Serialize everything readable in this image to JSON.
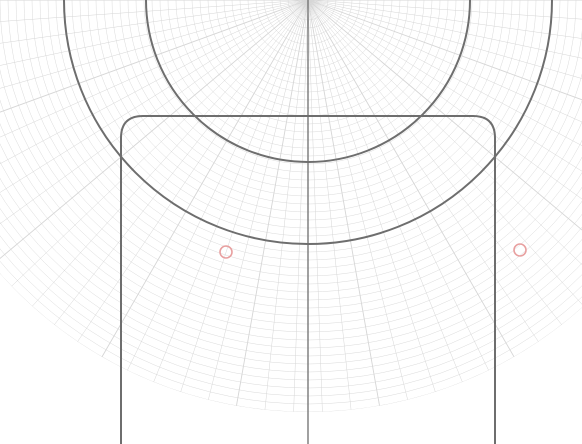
{
  "viewport": {
    "background": "#ffffff"
  },
  "colors": {
    "polar_grid": "#d6d6d6",
    "outline": "#6e6e6e",
    "curve_green": "#2f8a2f",
    "curve_brown": "#8a5a4a",
    "node_marker": "#e8a0a0"
  },
  "layers": {
    "polar_grid": "polar-coordinate-grid",
    "outer_arc": "outer-ring-arc",
    "inner_arc": "inner-ring-arc",
    "frame": "rounded-rectangle-frame",
    "centerline": "vertical-centerline",
    "curves": "dotted-deflection-curves",
    "markers": "circle-node-markers"
  }
}
